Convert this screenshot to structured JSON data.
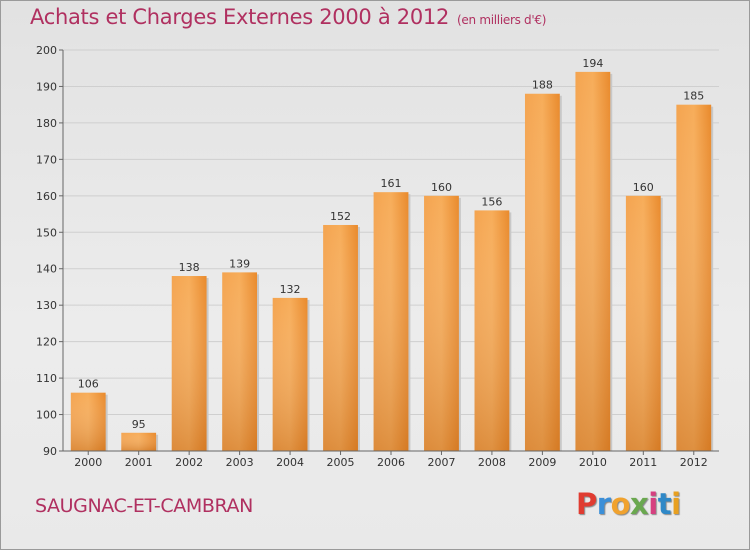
{
  "title": "Achats et Charges Externes 2000 à 2012",
  "subtitle": "(en milliers d'€)",
  "commune": "SAUGNAC-ET-CAMBRAN",
  "brand": {
    "letters": [
      "P",
      "r",
      "o",
      "x",
      "i",
      "t",
      "i"
    ],
    "colors": [
      "#e03c31",
      "#3b8fd8",
      "#f0a22e",
      "#6aa84f",
      "#d64080",
      "#2f88c7",
      "#e8a020"
    ]
  },
  "chart_data": {
    "type": "bar",
    "title": "Achats et Charges Externes 2000 à 2012",
    "subtitle": "(en milliers d'€)",
    "categories": [
      "2000",
      "2001",
      "2002",
      "2003",
      "2004",
      "2005",
      "2006",
      "2007",
      "2008",
      "2009",
      "2010",
      "2011",
      "2012"
    ],
    "values": [
      106,
      95,
      138,
      139,
      132,
      152,
      161,
      160,
      156,
      188,
      194,
      160,
      185
    ],
    "ylim": [
      90,
      200
    ],
    "yticks": [
      90,
      100,
      110,
      120,
      130,
      140,
      150,
      160,
      170,
      180,
      190,
      200
    ],
    "grid": true,
    "bar_color": "#f0902a",
    "xlabel": "",
    "ylabel": ""
  }
}
